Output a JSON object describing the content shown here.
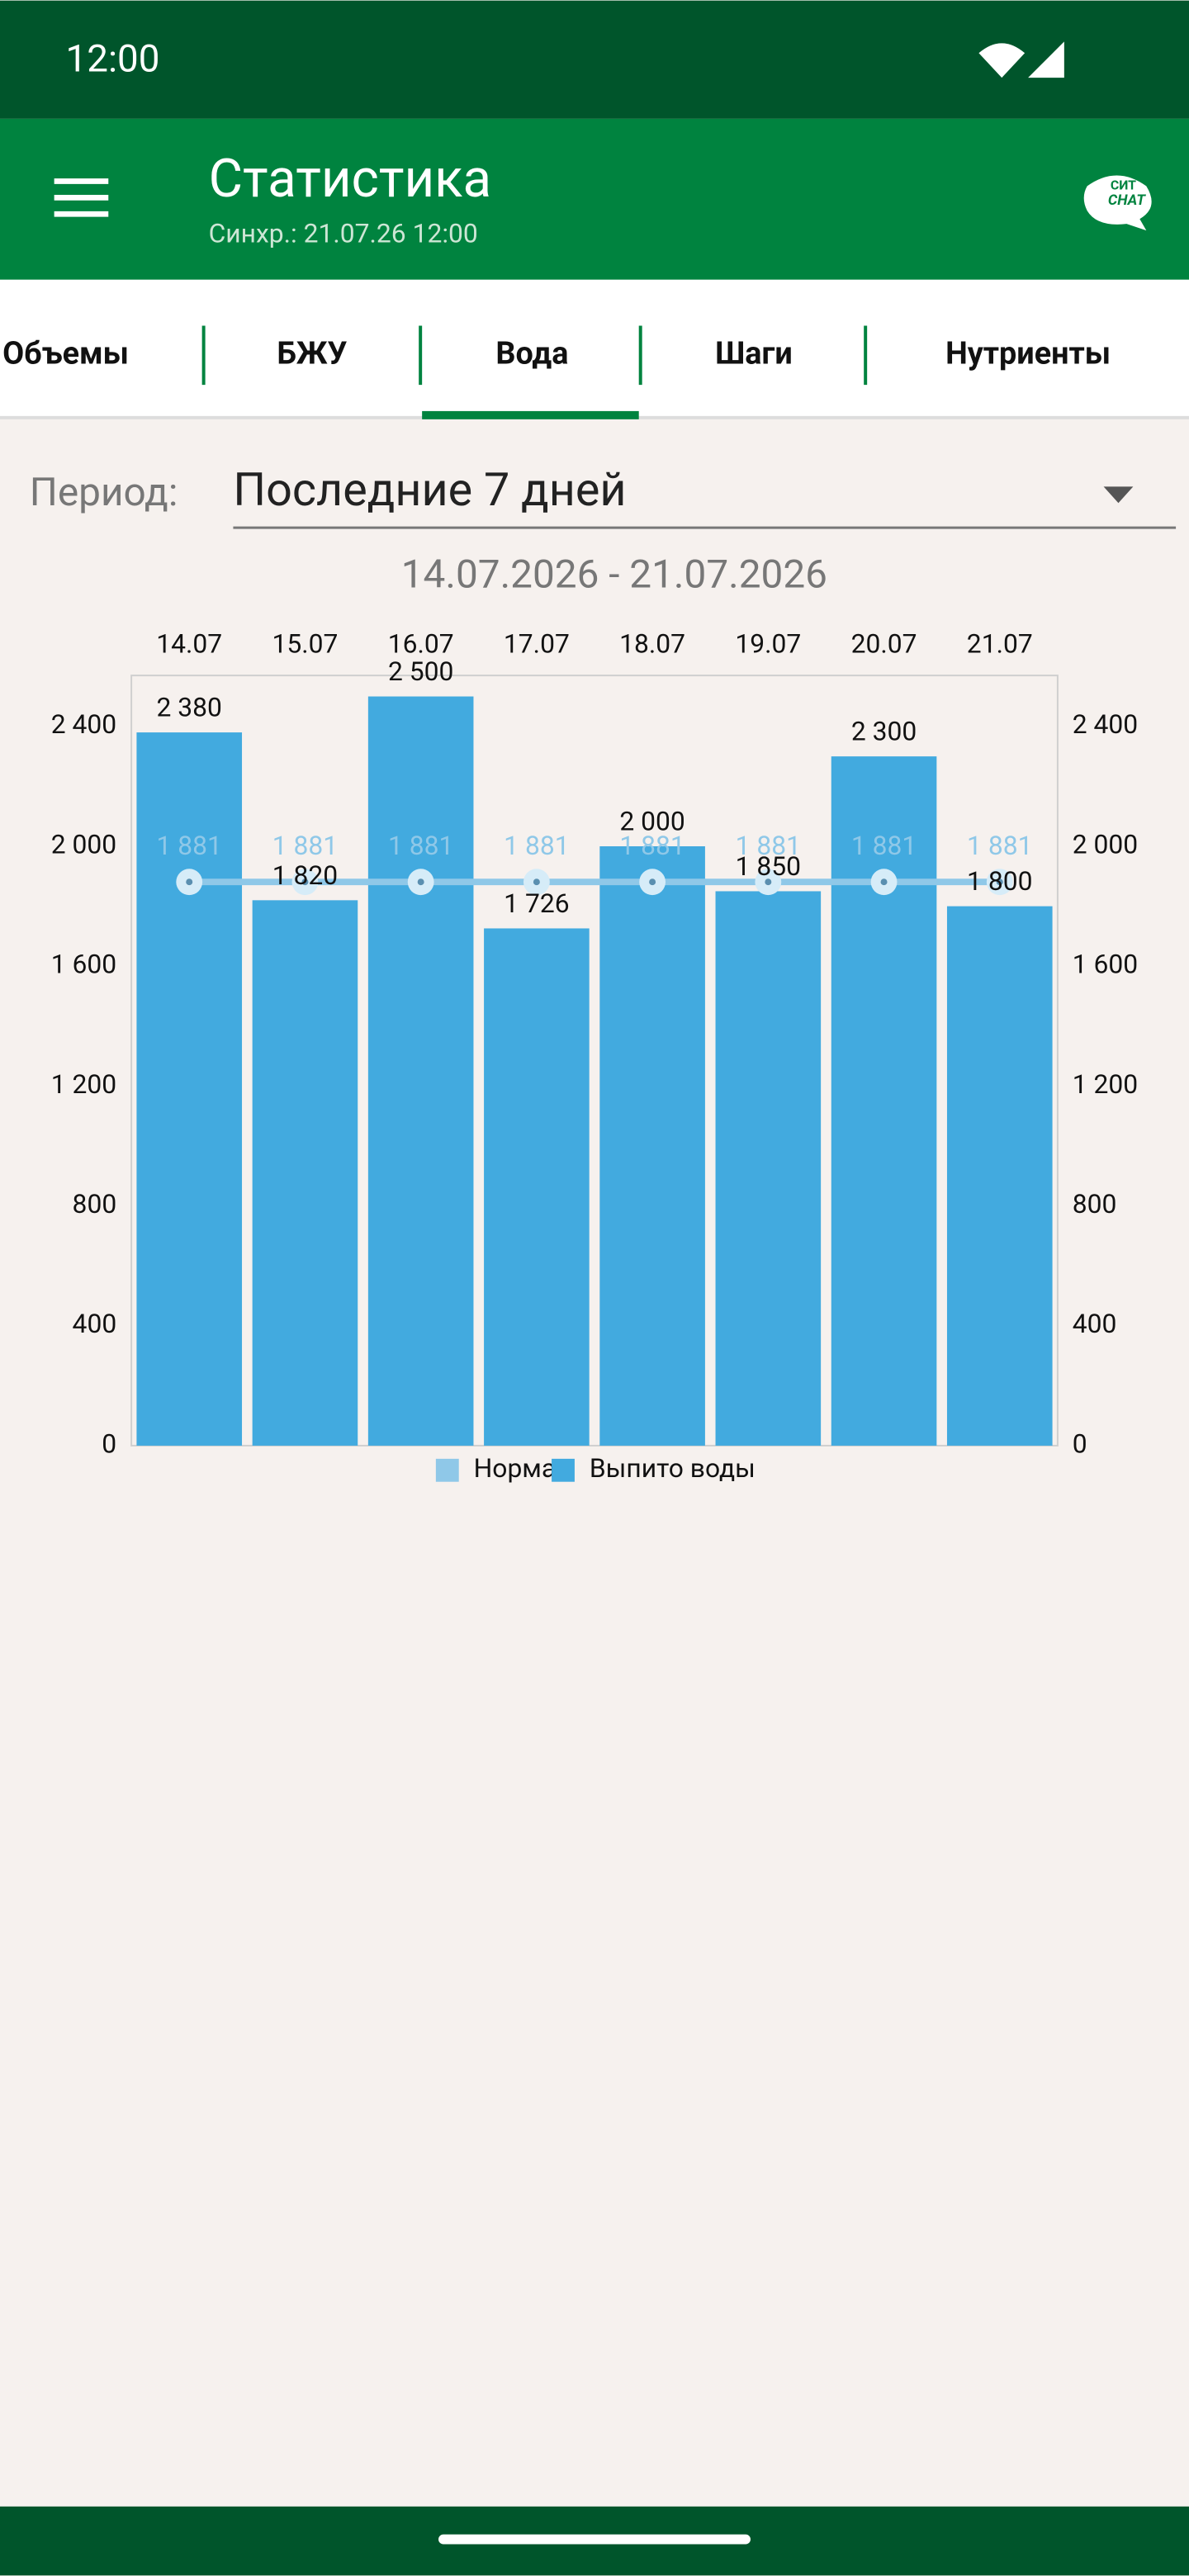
{
  "status_bar": {
    "time": "12:00"
  },
  "app_bar": {
    "title": "Статистика",
    "subtitle": "Синхр.: 21.07.26 12:00",
    "chat_logo": [
      "СИТ",
      "CHAT"
    ]
  },
  "tabs": [
    "Объемы",
    "БЖУ",
    "Вода",
    "Шаги",
    "Нутриенты"
  ],
  "selected_tab": 2,
  "period": {
    "label": "Период:",
    "value": "Последние 7 дней"
  },
  "date_range": "14.07.2026 - 21.07.2026",
  "chart_data": {
    "type": "bar",
    "categories": [
      "14.07",
      "15.07",
      "16.07",
      "17.07",
      "18.07",
      "19.07",
      "20.07",
      "21.07"
    ],
    "series": [
      {
        "name": "Норма",
        "type": "line",
        "color": "#8fc8e8",
        "values": [
          1881,
          1881,
          1881,
          1881,
          1881,
          1881,
          1881,
          1881
        ],
        "value_labels": [
          "1 881",
          "1 881",
          "1 881",
          "1 881",
          "1 881",
          "1 881",
          "1 881",
          "1 881"
        ]
      },
      {
        "name": "Выпито воды",
        "type": "bar",
        "color": "#42aadf",
        "values": [
          2380,
          1820,
          2500,
          1726,
          2000,
          1850,
          2300,
          1800
        ],
        "value_labels": [
          "2 380",
          "1 820",
          "2 500",
          "1 726",
          "2 000",
          "1 850",
          "2 300",
          "1 800"
        ]
      }
    ],
    "ylim": [
      0,
      2570
    ],
    "yticks": [
      0,
      400,
      800,
      {
        "value": 1200,
        "label": "1 200"
      },
      {
        "value": 1600,
        "label": "1 600"
      },
      {
        "value": 2000,
        "label": "2 000"
      },
      {
        "value": 2400,
        "label": "2 400"
      }
    ],
    "y2lim": [
      0,
      2570
    ],
    "y2ticks": [
      0,
      400,
      800,
      {
        "value": 1200,
        "label": "1 200"
      },
      {
        "value": 1600,
        "label": "1 600"
      },
      {
        "value": 2000,
        "label": "2 000"
      },
      {
        "value": 2400,
        "label": "2 400"
      }
    ],
    "grid": false,
    "legend": "bottom"
  }
}
